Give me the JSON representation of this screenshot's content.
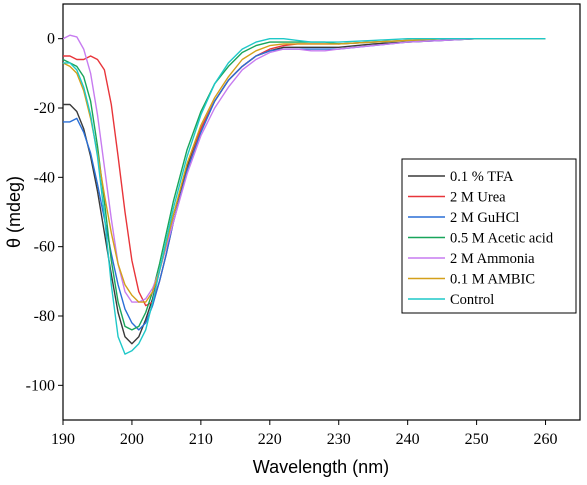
{
  "chart_data": {
    "type": "line",
    "title": "",
    "xlabel": "Wavelength (nm)",
    "ylabel": "θ (mdeg)",
    "xlim": [
      190,
      265
    ],
    "ylim": [
      -110,
      10
    ],
    "xticks": [
      190,
      200,
      210,
      220,
      230,
      240,
      250,
      260
    ],
    "yticks": [
      0,
      -20,
      -40,
      -60,
      -80,
      -100
    ],
    "grid": false,
    "legend_position": "right",
    "series": [
      {
        "name": "0.1 % TFA",
        "color": "#3a3a3a",
        "x": [
          190,
          191,
          192,
          193,
          194,
          195,
          196,
          197,
          198,
          199,
          200,
          201,
          202,
          203,
          204,
          205,
          206,
          208,
          210,
          212,
          214,
          216,
          218,
          220,
          222,
          224,
          226,
          228,
          230,
          235,
          240,
          245,
          250,
          255,
          260
        ],
        "y": [
          -19,
          -19,
          -21,
          -26,
          -34,
          -44,
          -56,
          -68,
          -79,
          -86,
          -88,
          -86,
          -81,
          -75,
          -67,
          -59,
          -51,
          -37,
          -26,
          -18,
          -12,
          -8,
          -5,
          -3.5,
          -2.5,
          -2.5,
          -2.5,
          -2.5,
          -2.5,
          -1.5,
          -1,
          -0.5,
          0,
          0,
          0
        ]
      },
      {
        "name": "2 M Urea",
        "color": "#e8353a",
        "x": [
          190,
          191,
          192,
          193,
          194,
          195,
          196,
          197,
          198,
          199,
          200,
          201,
          202,
          203,
          204,
          205,
          206,
          208,
          210,
          212,
          214,
          216,
          218,
          220,
          222,
          224,
          226,
          228,
          230,
          235,
          240,
          245,
          250,
          255,
          260
        ],
        "y": [
          -5,
          -5,
          -6,
          -6,
          -5,
          -6,
          -9,
          -19,
          -34,
          -50,
          -64,
          -73,
          -77,
          -76,
          -70,
          -62,
          -53,
          -38,
          -26,
          -18,
          -12,
          -8,
          -5,
          -3,
          -2,
          -1.5,
          -1.5,
          -1.5,
          -1.5,
          -1,
          -0.5,
          0,
          0,
          0,
          0
        ]
      },
      {
        "name": "2 M GuHCl",
        "color": "#2a6fd6",
        "x": [
          190,
          191,
          192,
          193,
          194,
          195,
          196,
          197,
          198,
          199,
          200,
          201,
          202,
          203,
          204,
          205,
          206,
          208,
          210,
          212,
          214,
          216,
          218,
          220,
          222,
          224,
          226,
          228,
          230,
          235,
          240,
          245,
          250,
          255,
          260
        ],
        "y": [
          -24,
          -24,
          -23,
          -27,
          -33,
          -42,
          -52,
          -62,
          -71,
          -78,
          -82,
          -84,
          -82,
          -77,
          -70,
          -62,
          -53,
          -38,
          -27,
          -18,
          -12,
          -8,
          -5,
          -3.5,
          -3,
          -3,
          -3,
          -3,
          -3,
          -2,
          -1,
          -0.5,
          0,
          0,
          0
        ]
      },
      {
        "name": "0.5 M Acetic acid",
        "color": "#19a55a",
        "x": [
          190,
          191,
          192,
          193,
          194,
          195,
          196,
          197,
          198,
          199,
          200,
          201,
          202,
          203,
          204,
          205,
          206,
          208,
          210,
          212,
          214,
          216,
          218,
          220,
          222,
          224,
          226,
          228,
          230,
          235,
          240,
          245,
          250,
          255,
          260
        ],
        "y": [
          -6,
          -7,
          -8,
          -11,
          -18,
          -31,
          -47,
          -64,
          -76,
          -83,
          -84,
          -83,
          -79,
          -73,
          -65,
          -56,
          -47,
          -32,
          -21,
          -13,
          -8,
          -4,
          -2,
          -1,
          -1,
          -1,
          -1,
          -1,
          -1.5,
          -1,
          -0.5,
          0,
          0,
          0,
          0
        ]
      },
      {
        "name": "2 M Ammonia",
        "color": "#c77cf0",
        "x": [
          190,
          191,
          192,
          193,
          194,
          195,
          196,
          197,
          198,
          199,
          200,
          201,
          202,
          203,
          204,
          205,
          206,
          208,
          210,
          212,
          214,
          216,
          218,
          220,
          222,
          224,
          226,
          228,
          230,
          235,
          240,
          245,
          250,
          255,
          260
        ],
        "y": [
          0,
          1,
          0.5,
          -3,
          -10,
          -22,
          -37,
          -52,
          -65,
          -73,
          -76,
          -76,
          -75,
          -72,
          -67,
          -60,
          -53,
          -39,
          -28,
          -20,
          -14,
          -9,
          -6,
          -4,
          -3,
          -3,
          -3.5,
          -3.5,
          -3,
          -2,
          -1,
          -0.5,
          0,
          0,
          0
        ]
      },
      {
        "name": "0.1 M AMBIC",
        "color": "#d4a01a",
        "x": [
          190,
          191,
          192,
          193,
          194,
          195,
          196,
          197,
          198,
          199,
          200,
          201,
          202,
          203,
          204,
          205,
          206,
          208,
          210,
          212,
          214,
          216,
          218,
          220,
          222,
          224,
          226,
          228,
          230,
          235,
          240,
          245,
          250,
          255,
          260
        ],
        "y": [
          -7,
          -8,
          -10,
          -15,
          -23,
          -33,
          -45,
          -56,
          -65,
          -71,
          -74,
          -76,
          -76,
          -73,
          -67,
          -59,
          -51,
          -36,
          -25,
          -17,
          -11,
          -6,
          -3.5,
          -2,
          -1.5,
          -1.5,
          -1.5,
          -1.5,
          -1.5,
          -1,
          -0.5,
          0,
          0,
          0,
          0
        ]
      },
      {
        "name": "Control",
        "color": "#1ec8c8",
        "x": [
          190,
          191,
          192,
          193,
          194,
          195,
          196,
          197,
          198,
          199,
          200,
          201,
          202,
          203,
          204,
          205,
          206,
          208,
          210,
          212,
          214,
          216,
          218,
          220,
          222,
          224,
          226,
          228,
          230,
          235,
          240,
          245,
          250,
          255,
          260
        ],
        "y": [
          -7,
          -7,
          -9,
          -14,
          -22,
          -34,
          -51,
          -71,
          -86,
          -91,
          -90,
          -88,
          -84,
          -76,
          -67,
          -58,
          -49,
          -34,
          -22,
          -13,
          -7,
          -3,
          -1,
          0,
          0,
          -0.5,
          -1,
          -1,
          -1,
          -0.5,
          0,
          0,
          0,
          0,
          0
        ]
      }
    ]
  }
}
